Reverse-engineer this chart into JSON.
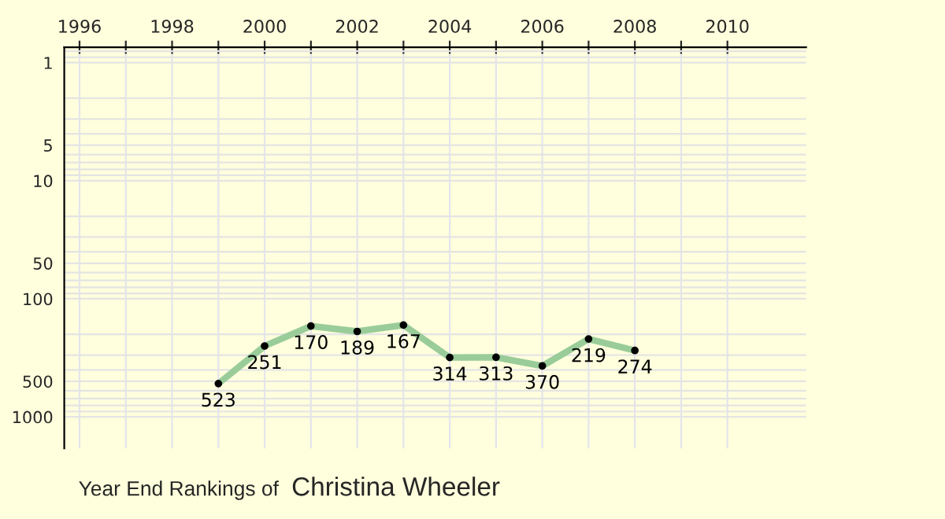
{
  "chart_data": {
    "type": "line",
    "title": "Year End Rankings of",
    "subtitle": "Christina Wheeler",
    "x": [
      1999,
      2000,
      2001,
      2002,
      2003,
      2004,
      2005,
      2006,
      2007,
      2008
    ],
    "series": [
      {
        "color": "#99cc99",
        "values": [
          523,
          251,
          170,
          189,
          167,
          314,
          313,
          370,
          219,
          274
        ]
      }
    ],
    "xlim": [
      1995.67,
      2011.7
    ],
    "ylim": [
      1850,
      0.74
    ],
    "log": true,
    "xticks": [
      1996,
      {
        "value": 1997,
        "label": null
      },
      1998,
      {
        "value": 1999,
        "label": null
      },
      2000,
      {
        "value": 2001,
        "label": null
      },
      2002,
      {
        "value": 2003,
        "label": null
      },
      2004,
      {
        "value": 2005,
        "label": null
      },
      2006,
      {
        "value": 2007,
        "label": null
      },
      2008,
      {
        "value": 2009,
        "label": null
      },
      2010
    ],
    "yticks": [
      1,
      5,
      10,
      50,
      100,
      500,
      1000
    ],
    "grid": true,
    "marker": "circle",
    "line_style": "solid",
    "data_labels": true
  }
}
